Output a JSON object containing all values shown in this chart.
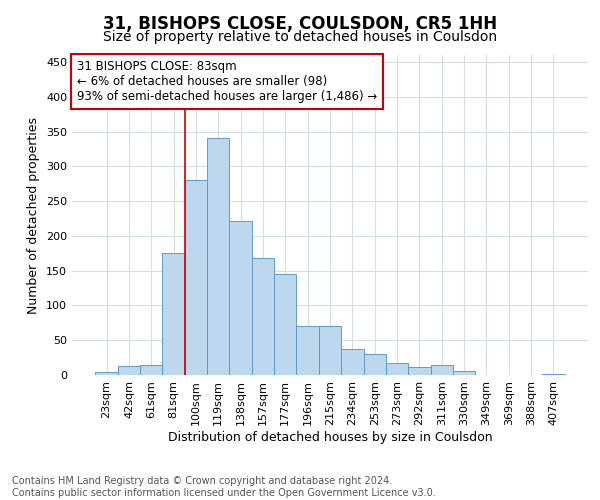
{
  "title1": "31, BISHOPS CLOSE, COULSDON, CR5 1HH",
  "title2": "Size of property relative to detached houses in Coulsdon",
  "xlabel": "Distribution of detached houses by size in Coulsdon",
  "ylabel": "Number of detached properties",
  "categories": [
    "23sqm",
    "42sqm",
    "61sqm",
    "81sqm",
    "100sqm",
    "119sqm",
    "138sqm",
    "157sqm",
    "177sqm",
    "196sqm",
    "215sqm",
    "234sqm",
    "253sqm",
    "273sqm",
    "292sqm",
    "311sqm",
    "330sqm",
    "349sqm",
    "369sqm",
    "388sqm",
    "407sqm"
  ],
  "values": [
    4,
    13,
    14,
    175,
    280,
    340,
    222,
    168,
    145,
    70,
    70,
    37,
    30,
    17,
    11,
    14,
    6,
    0,
    0,
    0,
    2
  ],
  "bar_color": "#bdd7ee",
  "bar_edge_color": "#5b9bd5",
  "annotation_box_text": "31 BISHOPS CLOSE: 83sqm\n← 6% of detached houses are smaller (98)\n93% of semi-detached houses are larger (1,486) →",
  "footer_text": "Contains HM Land Registry data © Crown copyright and database right 2024.\nContains public sector information licensed under the Open Government Licence v3.0.",
  "background_color": "#ffffff",
  "grid_color": "#d4dce8",
  "ylim": [
    0,
    460
  ],
  "yticks": [
    0,
    50,
    100,
    150,
    200,
    250,
    300,
    350,
    400,
    450
  ],
  "property_bar_index": 3,
  "title1_fontsize": 12,
  "title2_fontsize": 10,
  "xlabel_fontsize": 9,
  "ylabel_fontsize": 9,
  "tick_fontsize": 8,
  "annotation_fontsize": 8.5,
  "footer_fontsize": 7,
  "red_line_color": "#cc0000",
  "annotation_facecolor": "#ffffff",
  "annotation_edgecolor": "#cc0000"
}
